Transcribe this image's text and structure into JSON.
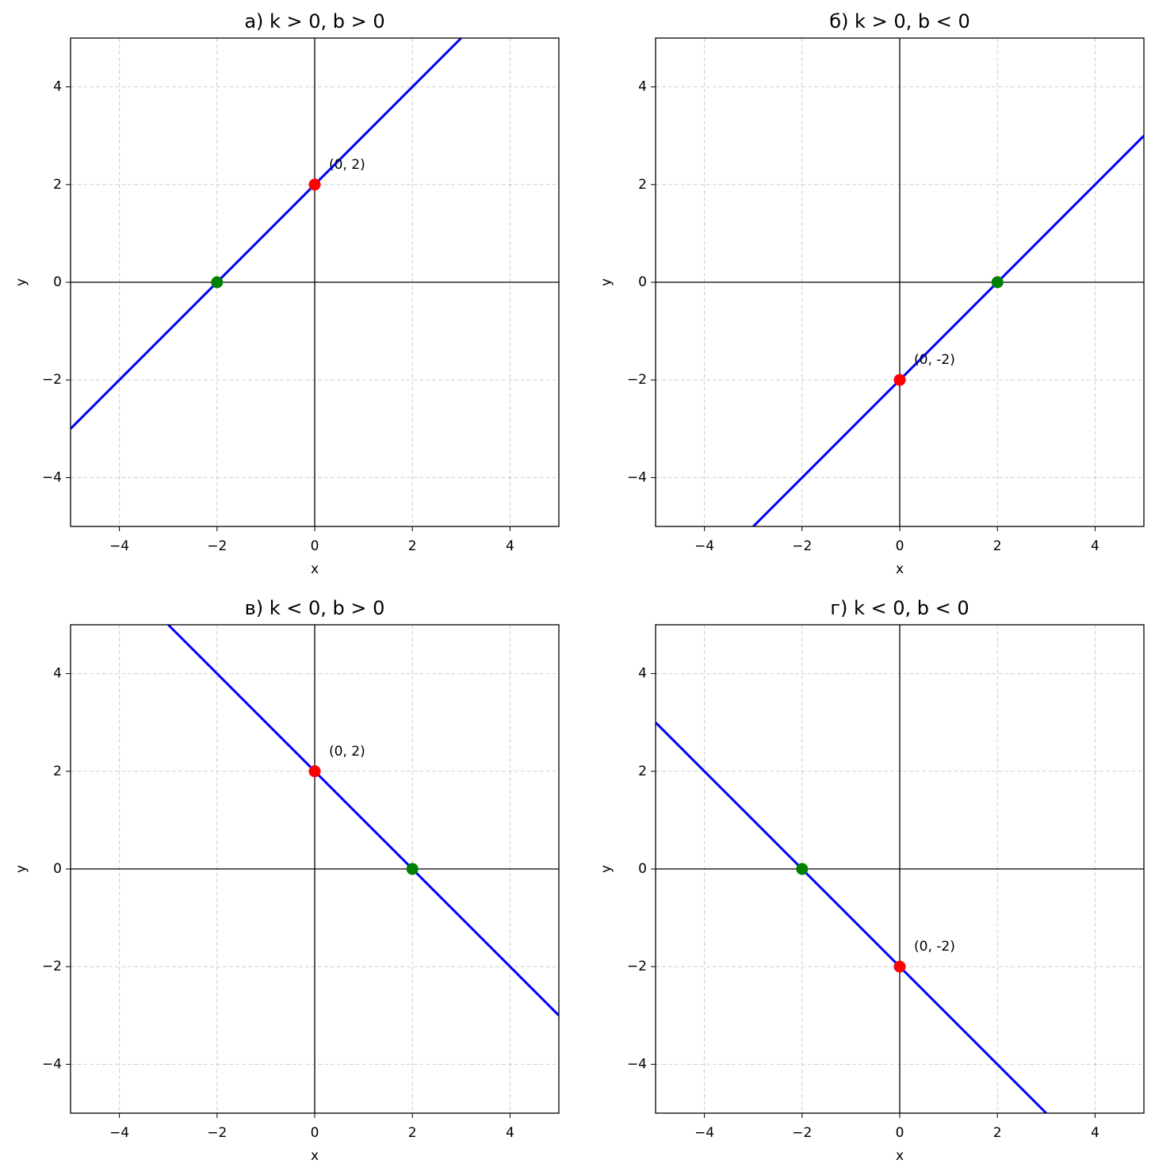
{
  "chart_data": [
    {
      "type": "line",
      "title": "а) k > 0, b > 0",
      "xlabel": "x",
      "ylabel": "y",
      "xlim": [
        -5,
        5
      ],
      "ylim": [
        -5,
        5
      ],
      "xticks": [
        {
          "value": -4,
          "label": "−4"
        },
        {
          "value": -2,
          "label": "−2"
        },
        0,
        2,
        4
      ],
      "yticks": [
        {
          "value": -4,
          "label": "−4"
        },
        {
          "value": -2,
          "label": "−2"
        },
        0,
        2,
        4
      ],
      "grid": true,
      "hline": 0,
      "vline": 0,
      "series": [
        {
          "color": "#0000ff",
          "x": [
            -5,
            3
          ],
          "values": [
            -3,
            5
          ]
        }
      ],
      "points": [
        {
          "x": 0,
          "y": 2,
          "color": "#ff0000",
          "label": "(0, 2)"
        },
        {
          "x": -2,
          "y": 0,
          "color": "#008000"
        }
      ]
    },
    {
      "type": "line",
      "title": "б) k > 0, b < 0",
      "xlabel": "x",
      "ylabel": "y",
      "xlim": [
        -5,
        5
      ],
      "ylim": [
        -5,
        5
      ],
      "xticks": [
        {
          "value": -4,
          "label": "−4"
        },
        {
          "value": -2,
          "label": "−2"
        },
        0,
        2,
        4
      ],
      "yticks": [
        {
          "value": -4,
          "label": "−4"
        },
        {
          "value": -2,
          "label": "−2"
        },
        0,
        2,
        4
      ],
      "grid": true,
      "hline": 0,
      "vline": 0,
      "series": [
        {
          "color": "#0000ff",
          "x": [
            -3,
            5
          ],
          "values": [
            -5,
            3
          ]
        }
      ],
      "points": [
        {
          "x": 0,
          "y": -2,
          "color": "#ff0000",
          "label": "(0, -2)"
        },
        {
          "x": 2,
          "y": 0,
          "color": "#008000"
        }
      ]
    },
    {
      "type": "line",
      "title": "в) k < 0, b > 0",
      "xlabel": "x",
      "ylabel": "y",
      "xlim": [
        -5,
        5
      ],
      "ylim": [
        -5,
        5
      ],
      "xticks": [
        {
          "value": -4,
          "label": "−4"
        },
        {
          "value": -2,
          "label": "−2"
        },
        0,
        2,
        4
      ],
      "yticks": [
        {
          "value": -4,
          "label": "−4"
        },
        {
          "value": -2,
          "label": "−2"
        },
        0,
        2,
        4
      ],
      "grid": true,
      "hline": 0,
      "vline": 0,
      "series": [
        {
          "color": "#0000ff",
          "x": [
            -3,
            5
          ],
          "values": [
            5,
            -3
          ]
        }
      ],
      "points": [
        {
          "x": 0,
          "y": 2,
          "color": "#ff0000",
          "label": "(0, 2)"
        },
        {
          "x": 2,
          "y": 0,
          "color": "#008000"
        }
      ]
    },
    {
      "type": "line",
      "title": "г) k < 0, b < 0",
      "xlabel": "x",
      "ylabel": "y",
      "xlim": [
        -5,
        5
      ],
      "ylim": [
        -5,
        5
      ],
      "xticks": [
        {
          "value": -4,
          "label": "−4"
        },
        {
          "value": -2,
          "label": "−2"
        },
        0,
        2,
        4
      ],
      "yticks": [
        {
          "value": -4,
          "label": "−4"
        },
        {
          "value": -2,
          "label": "−2"
        },
        0,
        2,
        4
      ],
      "grid": true,
      "hline": 0,
      "vline": 0,
      "series": [
        {
          "color": "#0000ff",
          "x": [
            -5,
            3
          ],
          "values": [
            3,
            -5
          ]
        }
      ],
      "points": [
        {
          "x": 0,
          "y": -2,
          "color": "#ff0000",
          "label": "(0, -2)"
        },
        {
          "x": -2,
          "y": 0,
          "color": "#008000"
        }
      ]
    }
  ]
}
